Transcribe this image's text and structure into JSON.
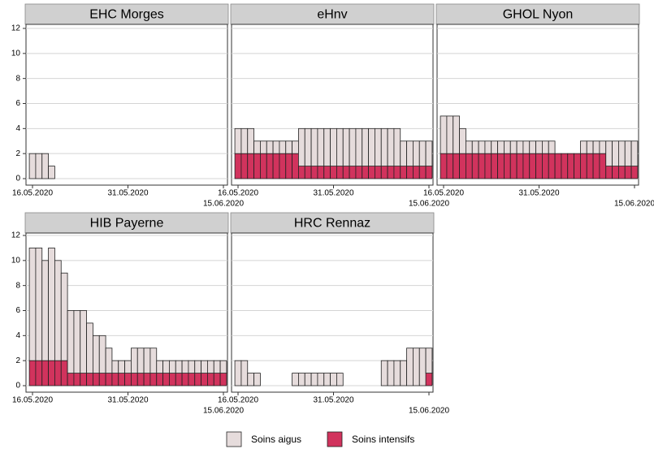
{
  "chart_data": [
    {
      "type": "bar",
      "stacked": true,
      "title": "EHC Morges",
      "categories": [
        "16.05.2020",
        null,
        null,
        null,
        null,
        null,
        null,
        null,
        null,
        null,
        null,
        null,
        null,
        null,
        null,
        "31.05.2020",
        null,
        null,
        null,
        null,
        null,
        null,
        null,
        null,
        null,
        null,
        null,
        null,
        null,
        null,
        "15.06.2020"
      ],
      "series": [
        {
          "name": "Soins intensifs",
          "color": "#d1335d",
          "values": [
            0,
            0,
            0,
            0,
            0,
            0,
            0,
            0,
            0,
            0,
            0,
            0,
            0,
            0,
            0,
            0,
            0,
            0,
            0,
            0,
            0,
            0,
            0,
            0,
            0,
            0,
            0,
            0,
            0,
            0,
            0
          ]
        },
        {
          "name": "Soins aigus",
          "color": "#e6dcdc",
          "values": [
            2,
            2,
            2,
            1,
            0,
            0,
            0,
            0,
            0,
            0,
            0,
            0,
            0,
            0,
            0,
            0,
            0,
            0,
            0,
            0,
            0,
            0,
            0,
            0,
            0,
            0,
            0,
            0,
            0,
            0,
            0
          ]
        }
      ],
      "ylim": [
        0,
        12
      ],
      "yticks": [
        0,
        2,
        4,
        6,
        8,
        10,
        12
      ],
      "grid": true
    },
    {
      "type": "bar",
      "stacked": true,
      "title": "eHnv",
      "categories": [
        "16.05.2020",
        null,
        null,
        null,
        null,
        null,
        null,
        null,
        null,
        null,
        null,
        null,
        null,
        null,
        null,
        "31.05.2020",
        null,
        null,
        null,
        null,
        null,
        null,
        null,
        null,
        null,
        null,
        null,
        null,
        null,
        null,
        "15.06.2020"
      ],
      "series": [
        {
          "name": "Soins intensifs",
          "color": "#d1335d",
          "values": [
            2,
            2,
            2,
            2,
            2,
            2,
            2,
            2,
            2,
            2,
            1,
            1,
            1,
            1,
            1,
            1,
            1,
            1,
            1,
            1,
            1,
            1,
            1,
            1,
            1,
            1,
            1,
            1,
            1,
            1,
            1
          ]
        },
        {
          "name": "Soins aigus",
          "color": "#e6dcdc",
          "values": [
            2,
            2,
            2,
            1,
            1,
            1,
            1,
            1,
            1,
            1,
            3,
            3,
            3,
            3,
            3,
            3,
            3,
            3,
            3,
            3,
            3,
            3,
            3,
            3,
            3,
            3,
            2,
            2,
            2,
            2,
            2
          ]
        }
      ],
      "ylim": [
        0,
        12
      ],
      "yticks": [
        0,
        2,
        4,
        6,
        8,
        10,
        12
      ],
      "grid": true
    },
    {
      "type": "bar",
      "stacked": true,
      "title": "GHOL Nyon",
      "categories": [
        "16.05.2020",
        null,
        null,
        null,
        null,
        null,
        null,
        null,
        null,
        null,
        null,
        null,
        null,
        null,
        null,
        "31.05.2020",
        null,
        null,
        null,
        null,
        null,
        null,
        null,
        null,
        null,
        null,
        null,
        null,
        null,
        null,
        "15.06.2020"
      ],
      "series": [
        {
          "name": "Soins intensifs",
          "color": "#d1335d",
          "values": [
            2,
            2,
            2,
            2,
            2,
            2,
            2,
            2,
            2,
            2,
            2,
            2,
            2,
            2,
            2,
            2,
            2,
            2,
            2,
            2,
            2,
            2,
            2,
            2,
            2,
            2,
            1,
            1,
            1,
            1,
            1
          ]
        },
        {
          "name": "Soins aigus",
          "color": "#e6dcdc",
          "values": [
            3,
            3,
            3,
            2,
            1,
            1,
            1,
            1,
            1,
            1,
            1,
            1,
            1,
            1,
            1,
            1,
            1,
            1,
            0,
            0,
            0,
            0,
            1,
            1,
            1,
            1,
            2,
            2,
            2,
            2,
            2
          ]
        }
      ],
      "ylim": [
        0,
        12
      ],
      "yticks": [
        0,
        2,
        4,
        6,
        8,
        10,
        12
      ],
      "grid": true
    },
    {
      "type": "bar",
      "stacked": true,
      "title": "HIB Payerne",
      "categories": [
        "16.05.2020",
        null,
        null,
        null,
        null,
        null,
        null,
        null,
        null,
        null,
        null,
        null,
        null,
        null,
        null,
        "31.05.2020",
        null,
        null,
        null,
        null,
        null,
        null,
        null,
        null,
        null,
        null,
        null,
        null,
        null,
        null,
        "15.06.2020"
      ],
      "series": [
        {
          "name": "Soins intensifs",
          "color": "#d1335d",
          "values": [
            2,
            2,
            2,
            2,
            2,
            2,
            1,
            1,
            1,
            1,
            1,
            1,
            1,
            1,
            1,
            1,
            1,
            1,
            1,
            1,
            1,
            1,
            1,
            1,
            1,
            1,
            1,
            1,
            1,
            1,
            1
          ]
        },
        {
          "name": "Soins aigus",
          "color": "#e6dcdc",
          "values": [
            9,
            9,
            8,
            9,
            8,
            7,
            5,
            5,
            5,
            4,
            3,
            3,
            2,
            1,
            1,
            1,
            2,
            2,
            2,
            2,
            1,
            1,
            1,
            1,
            1,
            1,
            1,
            1,
            1,
            1,
            1
          ]
        }
      ],
      "ylim": [
        0,
        12
      ],
      "yticks": [
        0,
        2,
        4,
        6,
        8,
        10,
        12
      ],
      "grid": true
    },
    {
      "type": "bar",
      "stacked": true,
      "title": "HRC Rennaz",
      "categories": [
        "16.05.2020",
        null,
        null,
        null,
        null,
        null,
        null,
        null,
        null,
        null,
        null,
        null,
        null,
        null,
        null,
        "31.05.2020",
        null,
        null,
        null,
        null,
        null,
        null,
        null,
        null,
        null,
        null,
        null,
        null,
        null,
        null,
        "15.06.2020"
      ],
      "series": [
        {
          "name": "Soins intensifs",
          "color": "#d1335d",
          "values": [
            0,
            0,
            0,
            0,
            0,
            0,
            0,
            0,
            0,
            0,
            0,
            0,
            0,
            0,
            0,
            0,
            0,
            0,
            0,
            0,
            0,
            0,
            0,
            0,
            0,
            0,
            0,
            0,
            0,
            0,
            1
          ]
        },
        {
          "name": "Soins aigus",
          "color": "#e6dcdc",
          "values": [
            2,
            2,
            1,
            1,
            0,
            0,
            0,
            0,
            0,
            1,
            1,
            1,
            1,
            1,
            1,
            1,
            1,
            0,
            0,
            0,
            0,
            0,
            0,
            2,
            2,
            2,
            2,
            3,
            3,
            3,
            2
          ]
        }
      ],
      "ylim": [
        0,
        12
      ],
      "yticks": [
        0,
        2,
        4,
        6,
        8,
        10,
        12
      ],
      "grid": true
    }
  ]
}
